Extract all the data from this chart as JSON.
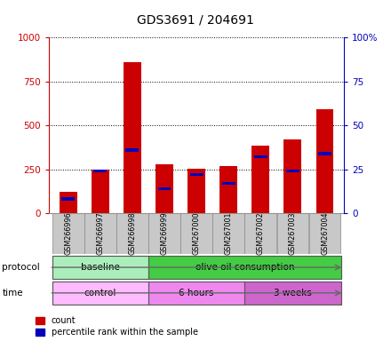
{
  "title": "GDS3691 / 204691",
  "samples": [
    "GSM266996",
    "GSM266997",
    "GSM266998",
    "GSM266999",
    "GSM267000",
    "GSM267001",
    "GSM267002",
    "GSM267003",
    "GSM267004"
  ],
  "count_values": [
    120,
    248,
    860,
    280,
    255,
    268,
    385,
    420,
    590
  ],
  "percentile_values": [
    80,
    240,
    360,
    140,
    220,
    170,
    320,
    240,
    340
  ],
  "red_color": "#cc0000",
  "blue_color": "#0000bb",
  "ylim_left": [
    0,
    1000
  ],
  "ylim_right": [
    0,
    100
  ],
  "yticks_left": [
    0,
    250,
    500,
    750,
    1000
  ],
  "yticks_right": [
    0,
    25,
    50,
    75,
    100
  ],
  "ytick_labels_left": [
    "0",
    "250",
    "500",
    "750",
    "1000"
  ],
  "ytick_labels_right": [
    "0",
    "25",
    "50",
    "75",
    "100%"
  ],
  "protocol_groups": [
    {
      "label": "baseline",
      "start": 0,
      "end": 3,
      "color": "#aaeebb"
    },
    {
      "label": "olive oil consumption",
      "start": 3,
      "end": 9,
      "color": "#44cc44"
    }
  ],
  "time_groups": [
    {
      "label": "control",
      "start": 0,
      "end": 3,
      "color": "#ffbbff"
    },
    {
      "label": "6 hours",
      "start": 3,
      "end": 6,
      "color": "#ee88ee"
    },
    {
      "label": "3 weeks",
      "start": 6,
      "end": 9,
      "color": "#cc66cc"
    }
  ],
  "legend_count_label": "count",
  "legend_percentile_label": "percentile rank within the sample",
  "background_color": "#ffffff",
  "bar_width": 0.55,
  "blue_bar_height": 18,
  "xtick_gray": "#cccccc",
  "xtick_cell_color": "#c8c8c8"
}
